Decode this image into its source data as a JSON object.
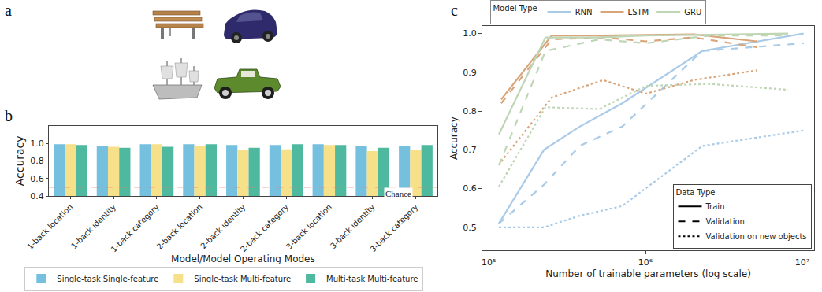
{
  "panel_labels": [
    "a",
    "b",
    "c"
  ],
  "chart_data": [
    {
      "type": "bar",
      "x_label": "Model/Model Operating Modes",
      "y_label": "Accuracy",
      "categories": [
        "1-back location",
        "1-back identity",
        "1-back category",
        "2-back location",
        "2-back identity",
        "2-back category",
        "3-back location",
        "3-back identity",
        "3-back category"
      ],
      "series": [
        {
          "name": "Single-task Single-feature",
          "color": "#74c0de",
          "values": [
            0.99,
            0.97,
            0.99,
            0.99,
            0.98,
            0.98,
            0.99,
            0.97,
            0.97
          ]
        },
        {
          "name": "Single-task Multi-feature",
          "color": "#f6e08a",
          "values": [
            0.99,
            0.96,
            0.99,
            0.97,
            0.92,
            0.93,
            0.98,
            0.91,
            0.92
          ]
        },
        {
          "name": "Multi-task Multi-feature",
          "color": "#4fb99f",
          "values": [
            0.98,
            0.95,
            0.96,
            0.99,
            0.95,
            0.99,
            0.98,
            0.95,
            0.98
          ]
        }
      ],
      "chance": {
        "value": 0.5,
        "label": "Chance",
        "color": "#e8836f"
      },
      "ylim": [
        0.4,
        1.2
      ],
      "yticks": [
        0.4,
        0.6,
        0.8,
        {
          "value": 1.0,
          "label": "1.0"
        }
      ],
      "grid": false,
      "legend": "bottom"
    },
    {
      "type": "line",
      "log": "x",
      "x_label": "Number of trainable parameters (log scale)",
      "y_label": "Accuracy",
      "xlim": [
        91000,
        11900000
      ],
      "xticks": [
        {
          "value": 100000,
          "label": "10⁵"
        },
        {
          "value": 1000000,
          "label": "10⁶"
        },
        {
          "value": 10000000,
          "label": "10⁷"
        }
      ],
      "ylim": [
        0.44,
        1.02
      ],
      "yticks": [
        0.5,
        0.6,
        0.7,
        0.8,
        0.9,
        {
          "value": 1.0,
          "label": "1.0"
        }
      ],
      "grid": false,
      "legends": [
        {
          "title": "Model Type",
          "legend": "top",
          "entries": [
            {
              "name": "RNN",
              "color": "#a9cbe8"
            },
            {
              "name": "LSTM",
              "color": "#d8a57a"
            },
            {
              "name": "GRU",
              "color": "#bfd6b5"
            }
          ]
        },
        {
          "title": "Data Type",
          "legend": "bottom right",
          "entries": [
            {
              "name": "Train",
              "line_style": "solid",
              "color": "#000000"
            },
            {
              "name": "Validation",
              "line_style": "dash",
              "color": "#000000"
            },
            {
              "name": "Validation on new objects",
              "line_style": "dot",
              "color": "#000000"
            }
          ]
        }
      ],
      "series": [
        {
          "model": "RNN",
          "data_type": "Train",
          "x": [
            116000,
            225000,
            380000,
            710000,
            2300000,
            10200000
          ],
          "values": [
            0.51,
            0.7,
            0.76,
            0.82,
            0.955,
            1.0
          ]
        },
        {
          "model": "RNN",
          "data_type": "Validation",
          "x": [
            116000,
            225000,
            380000,
            710000,
            2300000,
            10200000
          ],
          "values": [
            0.51,
            0.61,
            0.71,
            0.76,
            0.955,
            0.975
          ]
        },
        {
          "model": "RNN",
          "data_type": "Validation on new objects",
          "x": [
            116000,
            225000,
            380000,
            710000,
            2300000,
            10200000
          ],
          "values": [
            0.5,
            0.5,
            0.53,
            0.555,
            0.71,
            0.75
          ]
        },
        {
          "model": "LSTM",
          "data_type": "Train",
          "x": [
            120000,
            252000,
            536000,
            1010000,
            2030000,
            5120000
          ],
          "values": [
            0.83,
            0.995,
            0.995,
            0.997,
            0.998,
            0.98
          ]
        },
        {
          "model": "LSTM",
          "data_type": "Validation",
          "x": [
            120000,
            252000,
            536000,
            1010000,
            2030000,
            5120000
          ],
          "values": [
            0.82,
            0.985,
            0.99,
            0.98,
            0.99,
            0.965
          ]
        },
        {
          "model": "LSTM",
          "data_type": "Validation on new objects",
          "x": [
            120000,
            252000,
            536000,
            1010000,
            2030000,
            5120000
          ],
          "values": [
            0.67,
            0.835,
            0.88,
            0.845,
            0.88,
            0.905
          ]
        },
        {
          "model": "GRU",
          "data_type": "Train",
          "x": [
            116000,
            230000,
            506000,
            1010000,
            2550000,
            8130000
          ],
          "values": [
            0.74,
            0.99,
            0.99,
            0.995,
            0.997,
            1.0
          ]
        },
        {
          "model": "GRU",
          "data_type": "Validation",
          "x": [
            116000,
            230000,
            506000,
            1010000,
            2550000,
            8130000
          ],
          "values": [
            0.66,
            0.955,
            0.985,
            0.975,
            0.995,
            0.995
          ]
        },
        {
          "model": "GRU",
          "data_type": "Validation on new objects",
          "x": [
            116000,
            230000,
            506000,
            1010000,
            2550000,
            8130000
          ],
          "values": [
            0.605,
            0.81,
            0.805,
            0.865,
            0.87,
            0.855
          ]
        }
      ]
    }
  ]
}
